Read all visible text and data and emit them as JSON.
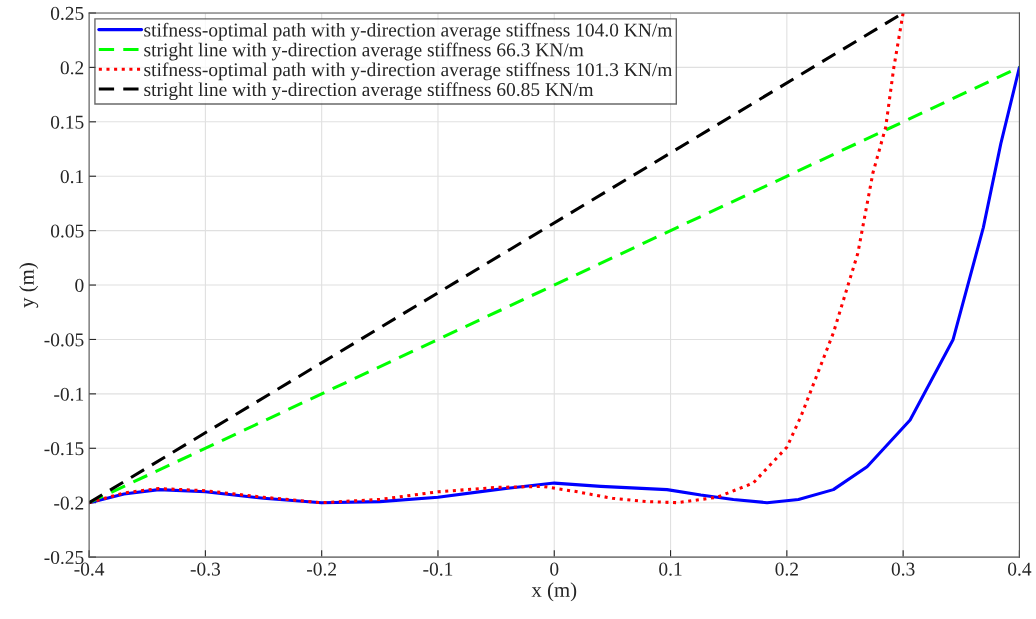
{
  "chart_data": {
    "type": "line",
    "xlabel": "x (m)",
    "ylabel": "y (m)",
    "xlim": [
      -0.4,
      0.4
    ],
    "ylim": [
      -0.25,
      0.25
    ],
    "xticks": [
      -0.4,
      -0.3,
      -0.2,
      -0.1,
      0,
      0.1,
      0.2,
      0.3,
      0.4
    ],
    "yticks": [
      -0.25,
      -0.2,
      -0.15,
      -0.1,
      -0.05,
      0,
      0.05,
      0.1,
      0.15,
      0.2,
      0.25
    ],
    "grid": true,
    "legend": "top left",
    "series": [
      {
        "name": "stifness-optimal path with y-direction average stiffness 104.0 KN/m",
        "color": "#0000ff",
        "line_style": "solid",
        "x": [
          -0.4,
          -0.37,
          -0.34,
          -0.3,
          -0.25,
          -0.2,
          -0.15,
          -0.1,
          -0.05,
          0,
          0.04,
          0.097,
          0.126,
          0.154,
          0.183,
          0.21,
          0.24,
          0.269,
          0.306,
          0.343,
          0.369,
          0.384,
          0.4
        ],
        "values": [
          -0.2,
          -0.192,
          -0.188,
          -0.19,
          -0.196,
          -0.2,
          -0.199,
          -0.195,
          -0.188,
          -0.182,
          -0.185,
          -0.188,
          -0.193,
          -0.197,
          -0.2,
          -0.197,
          -0.188,
          -0.167,
          -0.124,
          -0.05,
          0.053,
          0.13,
          0.2
        ]
      },
      {
        "name": "stright line with y-direction average stiffness 66.3 KN/m",
        "color": "#00ff00",
        "line_style": "dashed",
        "x": [
          -0.4,
          0.4
        ],
        "values": [
          -0.2,
          0.2
        ]
      },
      {
        "name": "stifness-optimal path with y-direction average stiffness 101.3 KN/m",
        "color": "#ff0000",
        "line_style": "dotted",
        "x": [
          -0.4,
          -0.37,
          -0.34,
          -0.3,
          -0.25,
          -0.2,
          -0.15,
          -0.1,
          -0.05,
          -0.01,
          0.02,
          0.05,
          0.08,
          0.106,
          0.14,
          0.171,
          0.2,
          0.212,
          0.24,
          0.261,
          0.274,
          0.285,
          0.292,
          0.3
        ],
        "values": [
          -0.2,
          -0.191,
          -0.187,
          -0.189,
          -0.195,
          -0.2,
          -0.197,
          -0.19,
          -0.186,
          -0.185,
          -0.19,
          -0.196,
          -0.199,
          -0.2,
          -0.195,
          -0.182,
          -0.149,
          -0.121,
          -0.044,
          0.029,
          0.103,
          0.145,
          0.2,
          0.25
        ]
      },
      {
        "name": "stright line with y-direction average stiffness 60.85 KN/m",
        "color": "#000000",
        "line_style": "dashed",
        "x": [
          -0.4,
          0.3
        ],
        "values": [
          -0.2,
          0.25
        ]
      }
    ]
  }
}
